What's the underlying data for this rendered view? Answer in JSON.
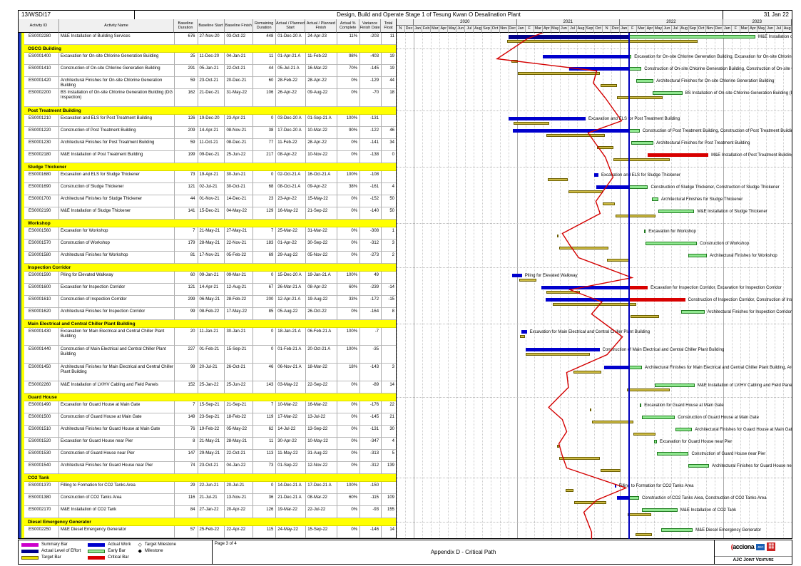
{
  "header": {
    "contract_no": "13/WSD/17",
    "title": "Design, Build and Operate Stage 1 of Tesung Kwan O Desalination Plant",
    "report_date": "31 Jan 22"
  },
  "table": {
    "columns": [
      "Activity ID",
      "Activity Name",
      "Baseline\nDuration",
      "Baseline Start",
      "Baseline Finish",
      "Remaining\nDuration",
      "Actual / Planned\nStart",
      "Actual / Planned\nFinish",
      "Actual %\nComplete",
      "Variance\nFinish Date",
      "Total\nFloat"
    ]
  },
  "timeline": {
    "years": [
      {
        "label": "",
        "span": 2
      },
      {
        "label": "2020",
        "span": 12
      },
      {
        "label": "2021",
        "span": 12
      },
      {
        "label": "2022",
        "span": 12
      },
      {
        "label": "2023",
        "span": 8
      }
    ],
    "months": [
      "N",
      "Dec",
      "Jan",
      "Feb",
      "Mar",
      "Apr",
      "May",
      "Jun",
      "Jul",
      "Aug",
      "Sep",
      "Oct",
      "Nov",
      "Dec",
      "Jan",
      "F",
      "Mar",
      "Apr",
      "May",
      "Jun",
      "Jul",
      "Aug",
      "Sep",
      "Oct",
      "N",
      "Dec",
      "Jan",
      "F",
      "Mar",
      "Apr",
      "May",
      "Jun",
      "Jul",
      "Aug",
      "Sep",
      "Oct",
      "Nov",
      "Dec",
      "Jan",
      "F",
      "Mar",
      "Apr",
      "May",
      "Jun",
      "Jul",
      "Aug"
    ],
    "data_date": "31-Jan-22"
  },
  "colors": {
    "section_band": "#ffff00",
    "actual": "#0000cd",
    "loe": "#00008b",
    "target": "#cdbb45",
    "target_border": "#6b5e00",
    "early": "#90e890",
    "early_border": "#1f7a1f",
    "critical": "#d80000",
    "data_date_line": "#0000bb",
    "progress_line": "#d40000",
    "summary": "#cc00cc",
    "stripe_blue": "#2038c8",
    "stripe_green": "#9acd32",
    "stripe_yellow": "#ffff00"
  },
  "chart_data": {
    "type": "table",
    "subtype": "gantt",
    "title": "Design, Build and Operate Stage 1 of Tesung Kwan O Desalination Plant",
    "data_date": "31-Jan-22",
    "axis_start": "Nov-2019",
    "axis_end": "Aug-2023",
    "sections": [
      {
        "name": null,
        "rows": [
          {
            "id": "ES0002280",
            "name": "M&E Installation of Building Services",
            "bl_dur": "676",
            "bl_start": "27-Nov-20",
            "bl_finish": "03-Oct-22",
            "rem_dur": "448",
            "act_start": "01-Dec-20 A",
            "act_finish": "24-Apr-23",
            "pct": "11%",
            "var": "-203",
            "float": "11",
            "loe": true,
            "pl": 15.2
          }
        ]
      },
      {
        "name": "OSCG Building",
        "rows": [
          {
            "id": "ES0001400",
            "name": "Excavation for On-site Chlorine Generation Building",
            "bl_dur": "25",
            "bl_start": "11-Dec-20",
            "bl_finish": "04-Jan-21",
            "rem_dur": "11",
            "act_start": "01-Apr-21 A",
            "act_finish": "11-Feb-22",
            "pct": "98%",
            "var": "-403",
            "float": "19",
            "dup": true,
            "pl": 11.7
          },
          {
            "id": "ES0001410",
            "name": "Construction of On-site Chlorine Generation Building",
            "bl_dur": "291",
            "bl_start": "05-Jan-21",
            "bl_finish": "22-Oct-21",
            "rem_dur": "44",
            "act_start": "05-Jul-21 A",
            "act_finish": "16-Mar-22",
            "pct": "70%",
            "var": "-145",
            "float": "19",
            "dup": true,
            "pl": 23.3
          },
          {
            "id": "ES0001420",
            "name": "Architectural Finishes for On-site Chlorine Generation Building",
            "bl_dur": "59",
            "bl_start": "23-Oct-21",
            "bl_finish": "20-Dec-21",
            "rem_dur": "60",
            "act_start": "28-Feb-22",
            "act_finish": "28-Apr-22",
            "pct": "0%",
            "var": "-129",
            "float": "44",
            "pl": 22.9
          },
          {
            "id": "ES0002200",
            "name": "BS Installation of On-site Chlorine Generation Building (DG Inspection)",
            "bl_dur": "162",
            "bl_start": "21-Dec-21",
            "bl_finish": "31-May-22",
            "rem_dur": "106",
            "act_start": "26-Apr-22",
            "act_finish": "09-Aug-22",
            "pct": "0%",
            "var": "-70",
            "float": "18",
            "two_line": true,
            "pl": 24.3
          }
        ]
      },
      {
        "name": "Post Treatment Building",
        "rows": [
          {
            "id": "ES0001210",
            "name": "Excavation and ELS for Post Treatment Building",
            "bl_dur": "126",
            "bl_start": "19-Dec-20",
            "bl_finish": "23-Apr-21",
            "rem_dur": "0",
            "act_start": "03-Dec-20 A",
            "act_finish": "01-Sep-21 A",
            "pct": "100%",
            "var": "-131",
            "float": "",
            "pl": 26.2
          },
          {
            "id": "ES0001220",
            "name": "Construction of Post Treatment Building",
            "bl_dur": "209",
            "bl_start": "14-Apr-21",
            "bl_finish": "08-Nov-21",
            "rem_dur": "38",
            "act_start": "17-Dec-20 A",
            "act_finish": "10-Mar-22",
            "pct": "90%",
            "var": "-122",
            "float": "46",
            "dup": true,
            "pl": 22.3
          },
          {
            "id": "ES0001230",
            "name": "Architectural Finishes for Post Treatment Building",
            "bl_dur": "59",
            "bl_start": "11-Oct-21",
            "bl_finish": "08-Dec-21",
            "rem_dur": "77",
            "act_start": "11-Feb-22",
            "act_finish": "28-Apr-22",
            "pct": "0%",
            "var": "-141",
            "float": "34",
            "pl": 23.3
          },
          {
            "id": "ES0002180",
            "name": "M&E Installation of Post Treatment Building",
            "bl_dur": "199",
            "bl_start": "09-Dec-21",
            "bl_finish": "25-Jun-22",
            "rem_dur": "217",
            "act_start": "08-Apr-22",
            "act_finish": "10-Nov-22",
            "pct": "0%",
            "var": "-138",
            "float": "0",
            "critical": true,
            "pl": 24.3
          }
        ]
      },
      {
        "name": "Sludge Thickener",
        "rows": [
          {
            "id": "ES0001680",
            "name": "Excavation and ELS for Sludge Thickener",
            "bl_dur": "73",
            "bl_start": "19-Apr-21",
            "bl_finish": "30-Jun-21",
            "rem_dur": "0",
            "act_start": "02-Oct-21 A",
            "act_finish": "16-Oct-21 A",
            "pct": "100%",
            "var": "-108",
            "float": "",
            "pl": 25.2
          },
          {
            "id": "ES0001690",
            "name": "Construction of Sludge Thickener",
            "bl_dur": "121",
            "bl_start": "02-Jul-21",
            "bl_finish": "30-Oct-21",
            "rem_dur": "68",
            "act_start": "08-Oct-21 A",
            "act_finish": "09-Apr-22",
            "pct": "38%",
            "var": "-161",
            "float": "4",
            "dup": true,
            "pl": 24.2
          },
          {
            "id": "ES0001700",
            "name": "Architectural Finishes for Sludge Thickener",
            "bl_dur": "44",
            "bl_start": "01-Nov-21",
            "bl_finish": "14-Dec-21",
            "rem_dur": "23",
            "act_start": "23-Apr-22",
            "act_finish": "15-May-22",
            "pct": "0%",
            "var": "-152",
            "float": "50",
            "pl": 23.2
          },
          {
            "id": "ES0002190",
            "name": "M&E Installation of Sludge Thickener",
            "bl_dur": "141",
            "bl_start": "15-Dec-21",
            "bl_finish": "04-May-22",
            "rem_dur": "129",
            "act_start": "16-May-22",
            "act_finish": "21-Sep-22",
            "pct": "0%",
            "var": "-140",
            "float": "50",
            "pl": 23.7
          }
        ]
      },
      {
        "name": "Workshop",
        "rows": [
          {
            "id": "ES0001560",
            "name": "Excavation for Workshop",
            "bl_dur": "7",
            "bl_start": "21-May-21",
            "bl_finish": "27-May-21",
            "rem_dur": "7",
            "act_start": "25-Mar-22",
            "act_finish": "31-Mar-22",
            "pct": "0%",
            "var": "-308",
            "float": "1",
            "pl": 19.3
          },
          {
            "id": "ES0001570",
            "name": "Construction of Workshop",
            "bl_dur": "179",
            "bl_start": "28-May-21",
            "bl_finish": "22-Nov-21",
            "rem_dur": "183",
            "act_start": "01-Apr-22",
            "act_finish": "30-Sep-22",
            "pct": "0%",
            "var": "-312",
            "float": "3",
            "pl": 20.2
          },
          {
            "id": "ES0001580",
            "name": "Architectural Finishes for Workshop",
            "bl_dur": "81",
            "bl_start": "17-Nov-21",
            "bl_finish": "05-Feb-22",
            "rem_dur": "69",
            "act_start": "29-Aug-22",
            "act_finish": "05-Nov-22",
            "pct": "0%",
            "var": "-273",
            "float": "2",
            "pl": 21.2
          }
        ]
      },
      {
        "name": "Inspection Corridor",
        "rows": [
          {
            "id": "ES0001590",
            "name": "Piling for Elevated Walkway",
            "bl_dur": "60",
            "bl_start": "09-Jan-21",
            "bl_finish": "09-Mar-21",
            "rem_dur": "0",
            "act_start": "15-Dec-20 A",
            "act_finish": "19-Jan-21 A",
            "pct": "100%",
            "var": "49",
            "float": "",
            "pl": 27.4
          },
          {
            "id": "ES0001600",
            "name": "Excavation for Inspection Corridor",
            "bl_dur": "121",
            "bl_start": "14-Apr-21",
            "bl_finish": "12-Aug-21",
            "rem_dur": "67",
            "act_start": "26-Mar-21 A",
            "act_finish": "08-Apr-22",
            "pct": "60%",
            "var": "-239",
            "float": "-14",
            "critical": true,
            "dup": true,
            "pl": 20.2
          },
          {
            "id": "ES0001610",
            "name": "Construction of Inspection Corridor",
            "bl_dur": "299",
            "bl_start": "06-May-21",
            "bl_finish": "28-Feb-22",
            "rem_dur": "200",
            "act_start": "12-Apr-21 A",
            "act_finish": "19-Aug-22",
            "pct": "33%",
            "var": "-172",
            "float": "-15",
            "critical": true,
            "dup": true,
            "pl": 23.9
          },
          {
            "id": "ES0001620",
            "name": "Architectural Finishes for Inspection Corridor",
            "bl_dur": "99",
            "bl_start": "08-Feb-22",
            "bl_finish": "17-May-22",
            "rem_dur": "85",
            "act_start": "05-Aug-22",
            "act_finish": "26-Oct-22",
            "pct": "0%",
            "var": "-164",
            "float": "8",
            "pl": 22.7
          }
        ]
      },
      {
        "name": "Main Electrical and Central Chiller Plant Building",
        "rows": [
          {
            "id": "ES0001430",
            "name": "Excavation for Main Electrical and Central Chiller Plant Building",
            "bl_dur": "20",
            "bl_start": "11-Jan-21",
            "bl_finish": "30-Jan-21",
            "rem_dur": "0",
            "act_start": "18-Jan-21 A",
            "act_finish": "06-Feb-21 A",
            "pct": "100%",
            "var": "-7",
            "float": "",
            "two_line": true,
            "pl": 26.3
          },
          {
            "id": "ES0001440",
            "name": "Construction of Main Electrical and Central Chiller Plant Building",
            "bl_dur": "227",
            "bl_start": "01-Feb-21",
            "bl_finish": "15-Sep-21",
            "rem_dur": "0",
            "act_start": "01-Feb-21 A",
            "act_finish": "20-Oct-21 A",
            "pct": "100%",
            "var": "-35",
            "float": "",
            "two_line": true,
            "pl": 24.5
          },
          {
            "id": "ES0001450",
            "name": "Architectural Finishes for Main Electrical and Central Chiller Plant Building",
            "bl_dur": "99",
            "bl_start": "20-Jul-21",
            "bl_finish": "26-Oct-21",
            "rem_dur": "46",
            "act_start": "06-Nov-21 A",
            "act_finish": "18-Mar-22",
            "pct": "18%",
            "var": "-143",
            "float": "3",
            "two_line": true,
            "dup": true,
            "pl": 19.8
          },
          {
            "id": "ES0002260",
            "name": "M&E Installation of LV/HV Cabling and Field Panels",
            "bl_dur": "152",
            "bl_start": "25-Jan-22",
            "bl_finish": "25-Jun-22",
            "rem_dur": "143",
            "act_start": "03-May-22",
            "act_finish": "22-Sep-22",
            "pct": "0%",
            "var": "-89",
            "float": "14",
            "pl": 20.0
          }
        ]
      },
      {
        "name": "Guard House",
        "rows": [
          {
            "id": "ES0001490",
            "name": "Excavation for Guard House at Main Gate",
            "bl_dur": "7",
            "bl_start": "15-Sep-21",
            "bl_finish": "21-Sep-21",
            "rem_dur": "7",
            "act_start": "10-Mar-22",
            "act_finish": "16-Mar-22",
            "pct": "0%",
            "var": "-176",
            "float": "22",
            "pl": 17.7
          },
          {
            "id": "ES0001500",
            "name": "Construction of Guard House at Main Gate",
            "bl_dur": "149",
            "bl_start": "23-Sep-21",
            "bl_finish": "18-Feb-22",
            "rem_dur": "119",
            "act_start": "17-Mar-22",
            "act_finish": "13-Jul-22",
            "pct": "0%",
            "var": "-145",
            "float": "21",
            "pl": 19.3
          },
          {
            "id": "ES0001510",
            "name": "Architectural Finishes for Guard House at Main Gate",
            "bl_dur": "76",
            "bl_start": "19-Feb-22",
            "bl_finish": "05-May-22",
            "rem_dur": "62",
            "act_start": "14-Jul-22",
            "act_finish": "13-Sep-22",
            "pct": "0%",
            "var": "-131",
            "float": "30",
            "pl": 19.8
          },
          {
            "id": "ES0001520",
            "name": "Excavation for Guard House near Pier",
            "bl_dur": "8",
            "bl_start": "21-May-21",
            "bl_finish": "28-May-21",
            "rem_dur": "11",
            "act_start": "30-Apr-22",
            "act_finish": "10-May-22",
            "pct": "0%",
            "var": "-347",
            "float": "4",
            "pl": 18.9
          },
          {
            "id": "ES0001530",
            "name": "Construction of Guard House near Pier",
            "bl_dur": "147",
            "bl_start": "29-May-21",
            "bl_finish": "22-Oct-21",
            "rem_dur": "113",
            "act_start": "11-May-22",
            "act_finish": "31-Aug-22",
            "pct": "0%",
            "var": "-313",
            "float": "5",
            "pl": 19.3
          },
          {
            "id": "ES0001540",
            "name": "Architectural Finishes for Guard House near Pier",
            "bl_dur": "74",
            "bl_start": "23-Oct-21",
            "bl_finish": "04-Jan-22",
            "rem_dur": "73",
            "act_start": "01-Sep-22",
            "act_finish": "12-Nov-22",
            "pct": "0%",
            "var": "-312",
            "float": "139",
            "pl": 19.8
          }
        ]
      },
      {
        "name": "CO2 Tank",
        "rows": [
          {
            "id": "ES0001370",
            "name": "Filling to Formation for CO2 Tanks Area",
            "bl_dur": "29",
            "bl_start": "22-Jun-21",
            "bl_finish": "20-Jul-21",
            "rem_dur": "0",
            "act_start": "14-Dec-21 A",
            "act_finish": "17-Dec-21 A",
            "pct": "100%",
            "var": "-150",
            "float": "",
            "pl": 26.7
          },
          {
            "id": "ES0001380",
            "name": "Construction of CO2 Tanks Area",
            "bl_dur": "116",
            "bl_start": "21-Jul-21",
            "bl_finish": "13-Nov-21",
            "rem_dur": "36",
            "act_start": "21-Dec-21 A",
            "act_finish": "08-Mar-22",
            "pct": "60%",
            "var": "-115",
            "float": "109",
            "dup": true,
            "pl": 23.3
          },
          {
            "id": "ES0002170",
            "name": "M&E Installation of CO2 Tank",
            "bl_dur": "84",
            "bl_start": "27-Jan-22",
            "bl_finish": "20-Apr-22",
            "rem_dur": "126",
            "act_start": "19-Mar-22",
            "act_finish": "22-Jul-22",
            "pct": "0%",
            "var": "-93",
            "float": "155",
            "pl": 21.8
          }
        ]
      },
      {
        "name": "Diesel Emergency Generator",
        "rows": [
          {
            "id": "ES0002250",
            "name": "M&E Diesel Emergency Generator",
            "bl_dur": "57",
            "bl_start": "25-Feb-22",
            "bl_finish": "22-Apr-22",
            "rem_dur": "115",
            "act_start": "24-May-22",
            "act_finish": "15-Sep-22",
            "pct": "0%",
            "var": "-146",
            "float": "14",
            "pl": 22.7
          }
        ]
      }
    ]
  },
  "legend": {
    "bars": [
      {
        "label": "Summary Bar",
        "color": "#cc00cc"
      },
      {
        "label": "Actual Level of Effort",
        "color": "#00008b"
      },
      {
        "label": "Target Bar",
        "color": "#e8df00",
        "border": "#6b5e00"
      },
      {
        "label": "Actual Work",
        "color": "#0000cd"
      },
      {
        "label": "Early Bar",
        "color": "#98e898",
        "border": "#1f7a1f"
      },
      {
        "label": "Critical Bar",
        "color": "#d80000"
      }
    ],
    "milestones": [
      {
        "glyph": "◇",
        "label": "Target Milestone"
      },
      {
        "glyph": "◆",
        "label": "Milestone"
      }
    ]
  },
  "footer": {
    "page": "Page 3 of 4",
    "center_title": "Appendix D - Critical Path",
    "logo_acciona": "acciona",
    "logo_jec": "JEC",
    "logo_ajc": "AJC Joint Venture"
  }
}
